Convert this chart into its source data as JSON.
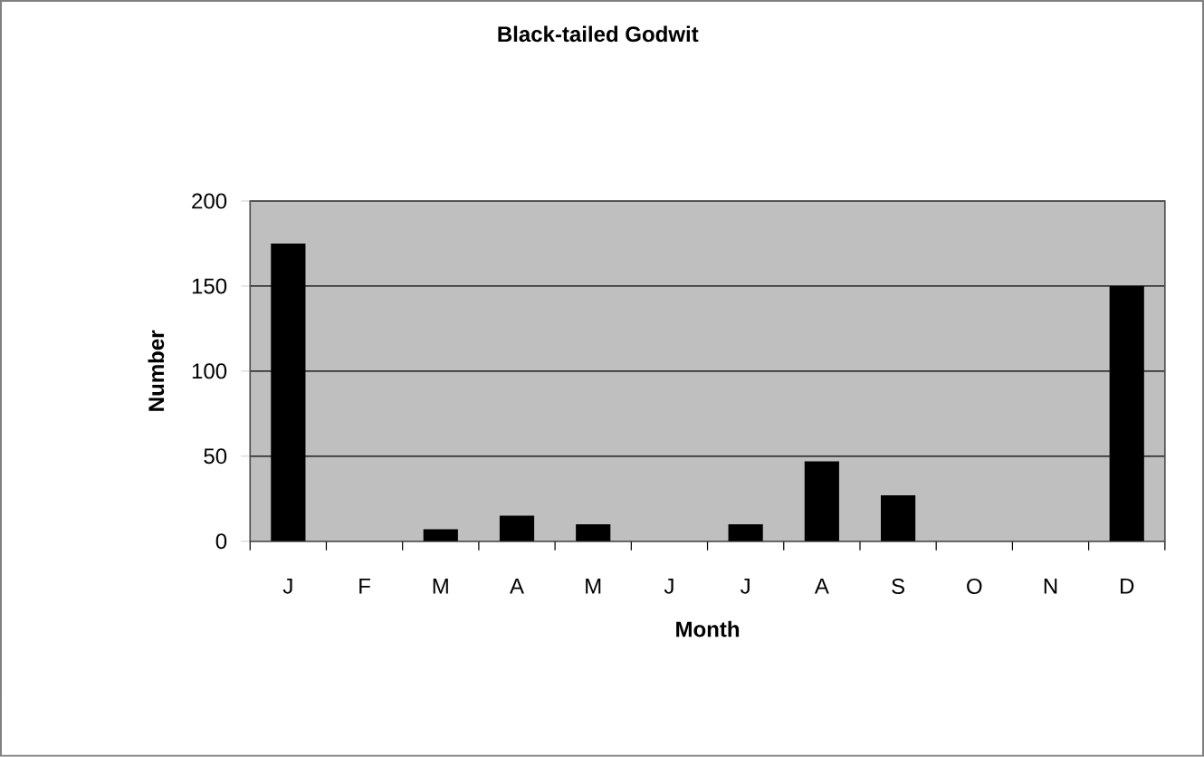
{
  "chart_data": {
    "type": "bar",
    "title": "Black-tailed Godwit",
    "xlabel": "Month",
    "ylabel": "Number",
    "categories": [
      "J",
      "F",
      "M",
      "A",
      "M",
      "J",
      "J",
      "A",
      "S",
      "O",
      "N",
      "D"
    ],
    "values": [
      175,
      0,
      7,
      15,
      10,
      0,
      10,
      47,
      27,
      0,
      0,
      150
    ],
    "color": "#000000",
    "ylim": [
      0,
      200
    ],
    "yticks": [
      0,
      50,
      100,
      150,
      200
    ],
    "grid": "y"
  }
}
